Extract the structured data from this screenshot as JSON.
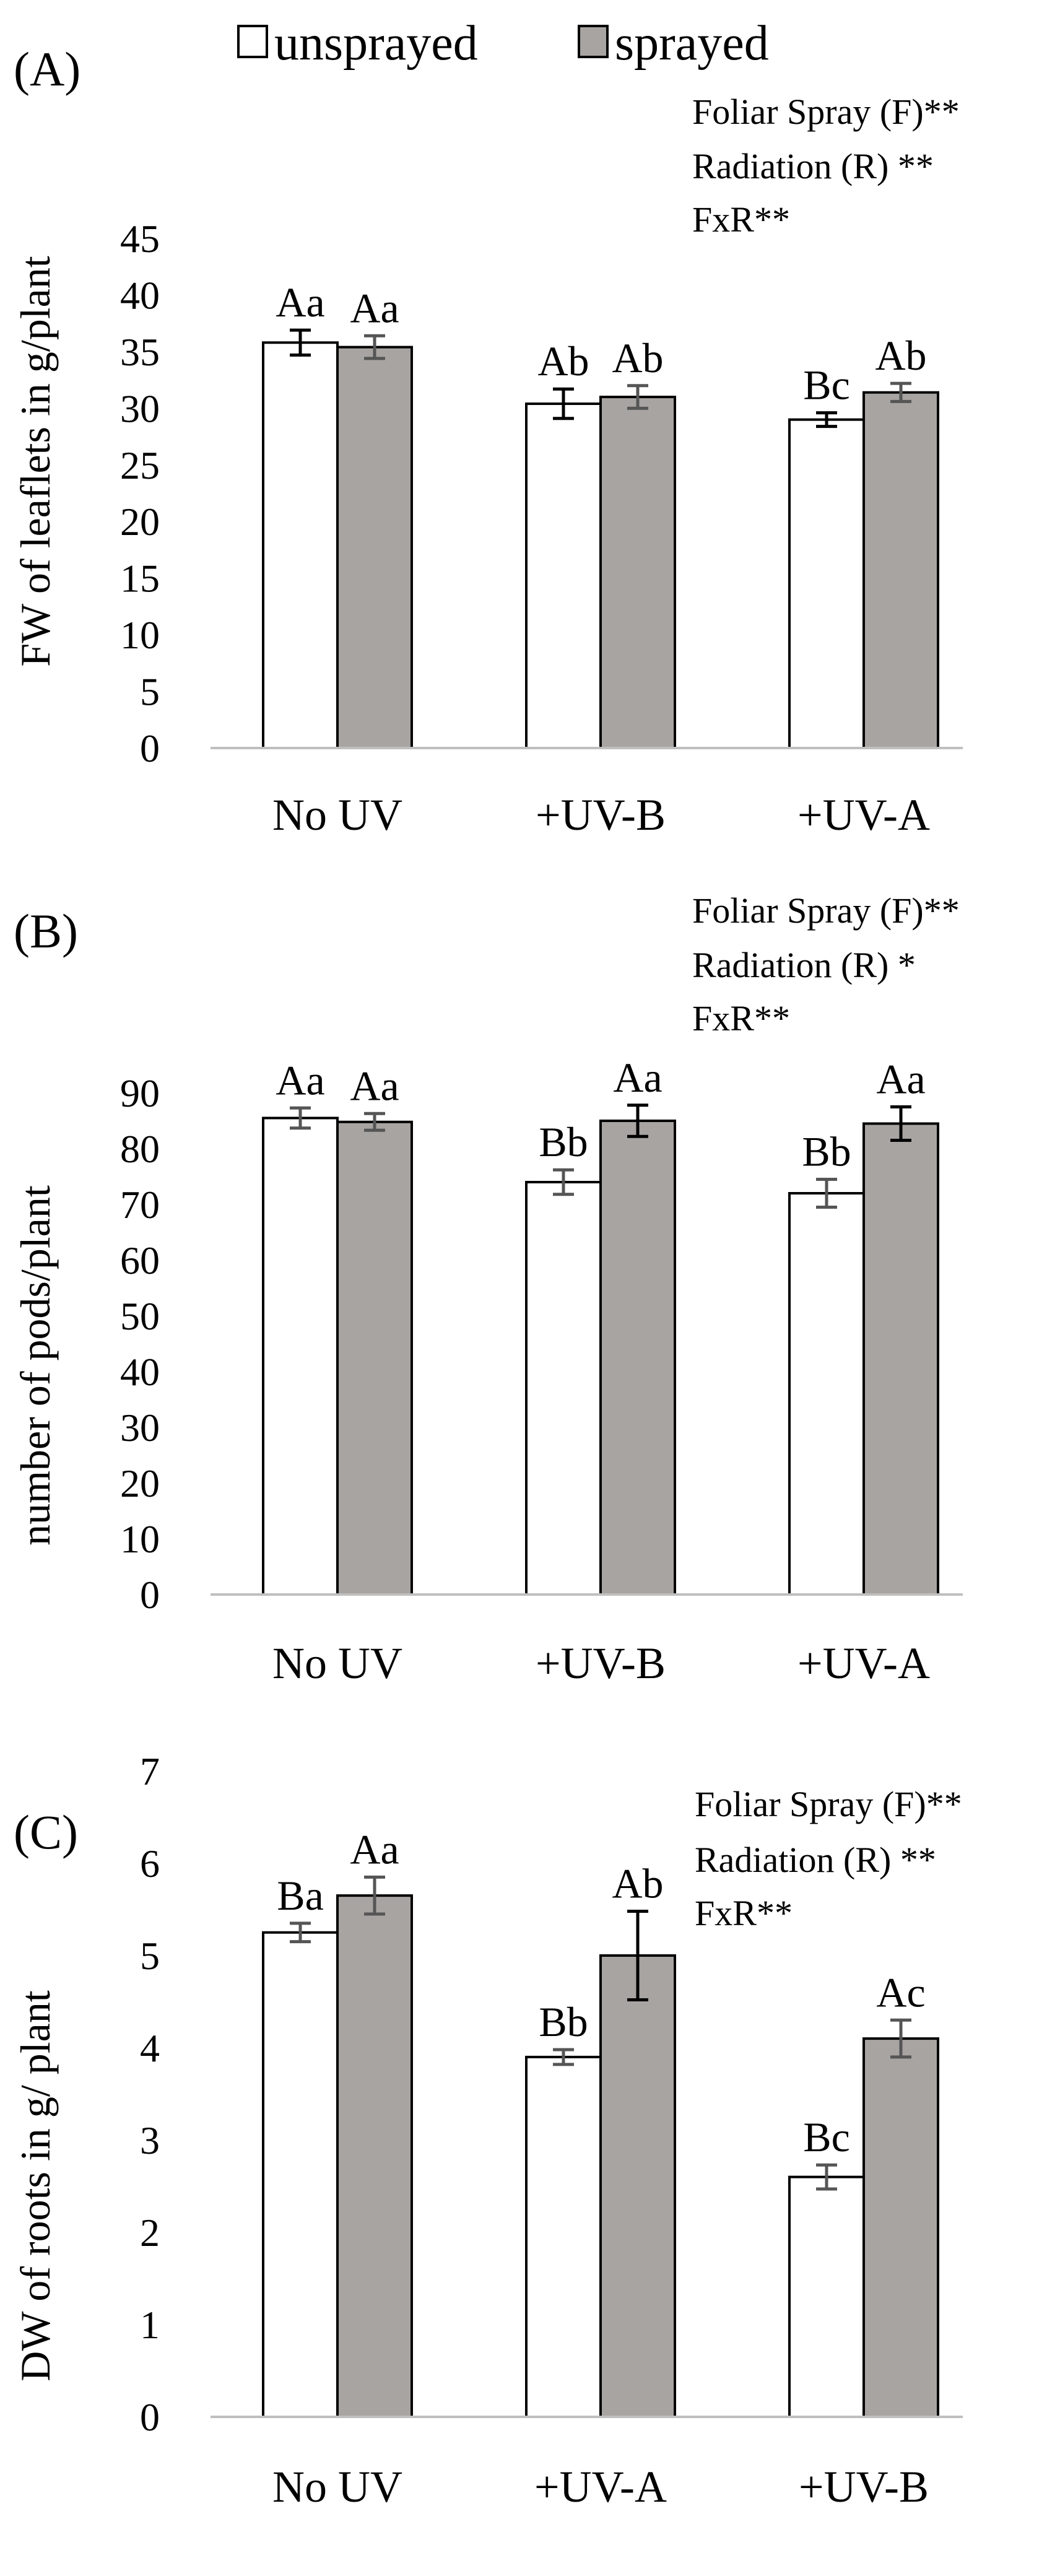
{
  "legend": {
    "unsprayed_label": "unsprayed",
    "sprayed_label": "sprayed"
  },
  "colors": {
    "unsprayed_fill": "#ffffff",
    "sprayed_fill": "#a8a4a2",
    "bar_stroke": "#000000",
    "axis": "#bfbfbf",
    "error_black": "#000000",
    "error_gray": "#555555"
  },
  "chart_data": [
    {
      "type": "bar",
      "panel_label": "(A)",
      "ylabel": "FW of leaflets in g/plant",
      "categories": [
        "No UV",
        "+UV-B",
        "+UV-A"
      ],
      "ylim": [
        0,
        45
      ],
      "yticks": [
        "0",
        "5",
        "10",
        "15",
        "20",
        "25",
        "30",
        "35",
        "40",
        "45"
      ],
      "stats": [
        "Foliar Spray (F)**",
        "Radiation (R) **",
        "FxR**"
      ],
      "series": [
        {
          "name": "unsprayed",
          "values": [
            35.8,
            30.4,
            29.0
          ],
          "errors": [
            1.1,
            1.3,
            0.6
          ],
          "labels": [
            "Aa",
            "Ab",
            "Bc"
          ],
          "error_colors": [
            "black",
            "black",
            "black"
          ]
        },
        {
          "name": "sprayed",
          "values": [
            35.4,
            31.0,
            31.4
          ],
          "errors": [
            1.0,
            1.0,
            0.8
          ],
          "labels": [
            "Aa",
            "Ab",
            "Ab"
          ],
          "error_colors": [
            "gray",
            "gray",
            "gray"
          ]
        }
      ]
    },
    {
      "type": "bar",
      "panel_label": "(B)",
      "ylabel": "number of pods/plant",
      "categories": [
        "No UV",
        "+UV-B",
        "+UV-A"
      ],
      "ylim": [
        0,
        90
      ],
      "yticks": [
        "0",
        "10",
        "20",
        "30",
        "40",
        "50",
        "60",
        "70",
        "80",
        "90"
      ],
      "stats": [
        "Foliar Spray (F)**",
        "Radiation (R) *",
        "FxR**"
      ],
      "series": [
        {
          "name": "unsprayed",
          "values": [
            85.5,
            74.0,
            72.0
          ],
          "errors": [
            1.8,
            2.2,
            2.5
          ],
          "labels": [
            "Aa",
            "Bb",
            "Bb"
          ],
          "error_colors": [
            "gray",
            "gray",
            "gray"
          ]
        },
        {
          "name": "sprayed",
          "values": [
            84.8,
            85.0,
            84.5
          ],
          "errors": [
            1.5,
            2.8,
            3.0
          ],
          "labels": [
            "Aa",
            "Aa",
            "Aa"
          ],
          "error_colors": [
            "gray",
            "black",
            "black"
          ]
        }
      ]
    },
    {
      "type": "bar",
      "panel_label": "(C)",
      "ylabel": "DW of roots in g/ plant",
      "categories": [
        "No UV",
        "+UV-A",
        "+UV-B"
      ],
      "ylim": [
        0,
        7
      ],
      "yticks": [
        "0",
        "1",
        "2",
        "3",
        "4",
        "5",
        "6",
        "7"
      ],
      "stats": [
        "Foliar Spray (F)**",
        "Radiation (R) **",
        "FxR**"
      ],
      "series": [
        {
          "name": "unsprayed",
          "values": [
            5.25,
            3.9,
            2.6
          ],
          "errors": [
            0.1,
            0.08,
            0.13
          ],
          "labels": [
            "Ba",
            "Bb",
            "Bc"
          ],
          "error_colors": [
            "gray",
            "gray",
            "gray"
          ]
        },
        {
          "name": "sprayed",
          "values": [
            5.65,
            5.0,
            4.1
          ],
          "errors": [
            0.2,
            0.48,
            0.2
          ],
          "labels": [
            "Aa",
            "Ab",
            "Ac"
          ],
          "error_colors": [
            "gray",
            "black",
            "gray"
          ]
        }
      ]
    }
  ]
}
